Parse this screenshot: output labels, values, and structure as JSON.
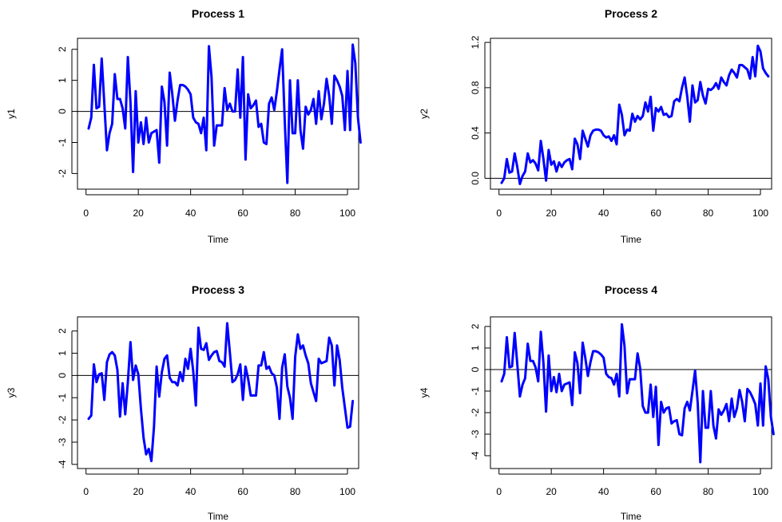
{
  "line_color": "#0000ff",
  "chart_data": [
    {
      "type": "line",
      "title": "Process 1",
      "xlabel": "Time",
      "ylabel": "y1",
      "xlim": [
        1,
        100
      ],
      "ylim": [
        -2.3,
        2.15
      ],
      "xticks": [
        0,
        20,
        40,
        60,
        80,
        100
      ],
      "yticks": [
        -2,
        -1,
        0,
        1,
        2
      ],
      "hline": 0,
      "series": [
        {
          "values": [
            -0.55,
            -0.2,
            1.5,
            0.1,
            0.15,
            1.7,
            0.25,
            -1.25,
            -0.7,
            -0.4,
            1.2,
            0.4,
            0.4,
            0.1,
            -0.55,
            1.75,
            0.3,
            -1.95,
            0.65,
            -1.0,
            -0.35,
            -1.05,
            -0.2,
            -1.0,
            -0.7,
            -0.65,
            -0.6,
            -1.65,
            0.8,
            0.3,
            -1.1,
            1.25,
            0.55,
            -0.3,
            0.35,
            0.85,
            0.85,
            0.8,
            0.7,
            0.55,
            -0.2,
            -0.35,
            -0.4,
            -0.7,
            -0.2,
            -1.25,
            2.1,
            1.1,
            -1.1,
            -0.45,
            -0.45,
            -0.45,
            0.75,
            0.05,
            0.25,
            0.0,
            0.0,
            1.35,
            -0.2,
            1.75,
            -1.55,
            0.55,
            0.1,
            0.2,
            0.35,
            -0.5,
            -0.4,
            -1.0,
            -1.05,
            0.25,
            0.45,
            0.05,
            0.65,
            1.35,
            2.0,
            -0.3,
            -2.3,
            1.0,
            -0.7,
            -0.7,
            1.0,
            -0.6,
            -1.2,
            0.15,
            -0.1,
            0.05,
            0.4,
            -0.4,
            0.65,
            -0.25,
            0.25,
            1.05,
            0.5,
            -0.4,
            1.15,
            1.0,
            0.8,
            0.5,
            -0.6,
            1.3,
            -0.6,
            2.15,
            1.55,
            -0.2,
            -1.0
          ]
        }
      ]
    },
    {
      "type": "line",
      "title": "Process 2",
      "xlabel": "Time",
      "ylabel": "y2",
      "xlim": [
        1,
        100
      ],
      "ylim": [
        -0.04,
        1.18
      ],
      "xticks": [
        0,
        20,
        40,
        60,
        80,
        100
      ],
      "yticks": [
        0.0,
        0.4,
        0.8,
        1.2
      ],
      "ytick_labels": [
        "0.0",
        "0.4",
        "0.8",
        "1.2"
      ],
      "hline": 0,
      "series": [
        {
          "values": [
            -0.04,
            0.0,
            0.17,
            0.05,
            0.06,
            0.22,
            0.1,
            -0.05,
            0.02,
            0.06,
            0.22,
            0.14,
            0.16,
            0.13,
            0.07,
            0.33,
            0.17,
            -0.02,
            0.25,
            0.12,
            0.15,
            0.06,
            0.14,
            0.1,
            0.14,
            0.16,
            0.17,
            0.08,
            0.35,
            0.3,
            0.17,
            0.42,
            0.35,
            0.28,
            0.38,
            0.42,
            0.43,
            0.43,
            0.42,
            0.38,
            0.36,
            0.37,
            0.33,
            0.38,
            0.3,
            0.65,
            0.56,
            0.38,
            0.43,
            0.42,
            0.57,
            0.5,
            0.55,
            0.52,
            0.55,
            0.67,
            0.59,
            0.72,
            0.42,
            0.62,
            0.59,
            0.63,
            0.56,
            0.57,
            0.54,
            0.55,
            0.68,
            0.7,
            0.68,
            0.8,
            0.89,
            0.72,
            0.5,
            0.82,
            0.67,
            0.69,
            0.85,
            0.73,
            0.66,
            0.79,
            0.78,
            0.8,
            0.84,
            0.79,
            0.89,
            0.85,
            0.82,
            0.91,
            0.96,
            0.93,
            0.89,
            1.0,
            1.0,
            0.98,
            0.96,
            0.88,
            1.07,
            0.9,
            1.17,
            1.12,
            0.97,
            0.93,
            0.9
          ]
        }
      ]
    },
    {
      "type": "line",
      "title": "Process 3",
      "xlabel": "Time",
      "ylabel": "y3",
      "xlim": [
        1,
        100
      ],
      "ylim": [
        -3.9,
        2.35
      ],
      "xticks": [
        0,
        20,
        40,
        60,
        80,
        100
      ],
      "yticks": [
        -4,
        -3,
        -2,
        -1,
        0,
        1,
        2
      ],
      "hline": 0,
      "series": [
        {
          "values": [
            -1.95,
            -1.8,
            0.5,
            -0.3,
            0.05,
            0.1,
            -1.1,
            0.6,
            0.95,
            1.05,
            0.9,
            0.25,
            -1.85,
            -0.35,
            -1.75,
            -0.3,
            1.5,
            -0.2,
            0.45,
            0.05,
            -1.5,
            -2.8,
            -3.55,
            -3.3,
            -3.85,
            -2.3,
            0.4,
            -0.95,
            0.15,
            0.75,
            0.9,
            -0.1,
            -0.3,
            -0.3,
            -0.45,
            0.15,
            -0.25,
            0.75,
            0.3,
            1.2,
            0.2,
            -1.35,
            2.15,
            1.2,
            1.15,
            1.45,
            0.7,
            0.9,
            1.05,
            1.1,
            0.65,
            0.6,
            0.4,
            2.35,
            1.05,
            -0.3,
            -0.2,
            0.05,
            0.5,
            -1.1,
            0.4,
            -0.15,
            -0.9,
            -0.9,
            -0.9,
            0.45,
            0.45,
            1.05,
            0.3,
            0.4,
            0.1,
            0.0,
            -0.55,
            -1.95,
            0.35,
            0.95,
            -0.5,
            -1.0,
            -1.95,
            0.85,
            1.85,
            1.2,
            1.35,
            0.9,
            0.55,
            -0.35,
            -0.75,
            -1.15,
            0.75,
            0.55,
            0.6,
            0.65,
            1.7,
            1.35,
            -0.45,
            1.35,
            0.7,
            -0.55,
            -1.45,
            -2.35,
            -2.3,
            -1.15
          ]
        }
      ]
    },
    {
      "type": "line",
      "title": "Process 4",
      "xlabel": "Time",
      "ylabel": "y4",
      "xlim": [
        1,
        100
      ],
      "ylim": [
        -4.3,
        2.15
      ],
      "xticks": [
        0,
        20,
        40,
        60,
        80,
        100
      ],
      "yticks": [
        -4,
        -3,
        -2,
        -1,
        0,
        1,
        2
      ],
      "hline": 0,
      "series": [
        {
          "values": [
            -0.55,
            -0.2,
            1.5,
            0.1,
            0.15,
            1.7,
            0.25,
            -1.25,
            -0.7,
            -0.4,
            1.2,
            0.4,
            0.4,
            0.1,
            -0.55,
            1.75,
            0.3,
            -1.95,
            0.65,
            -1.0,
            -0.35,
            -1.05,
            -0.2,
            -1.0,
            -0.7,
            -0.65,
            -0.6,
            -1.65,
            0.8,
            0.3,
            -1.1,
            1.25,
            0.55,
            -0.3,
            0.35,
            0.85,
            0.85,
            0.8,
            0.7,
            0.55,
            -0.2,
            -0.35,
            -0.4,
            -0.7,
            -0.2,
            -1.25,
            2.1,
            1.1,
            -1.1,
            -0.45,
            -0.45,
            -0.45,
            0.75,
            0.05,
            -1.7,
            -2.0,
            -2.0,
            -0.7,
            -2.2,
            -0.8,
            -3.5,
            -1.5,
            -2.0,
            -1.8,
            -1.75,
            -2.5,
            -2.4,
            -2.35,
            -3.0,
            -3.05,
            -1.8,
            -1.5,
            -1.9,
            -1.0,
            -0.05,
            -1.55,
            -4.3,
            -1.0,
            -2.7,
            -2.7,
            -1.0,
            -2.6,
            -3.2,
            -1.85,
            -2.1,
            -1.9,
            -1.6,
            -2.4,
            -1.35,
            -2.2,
            -1.8,
            -0.95,
            -1.5,
            -2.4,
            -0.9,
            -1.05,
            -1.3,
            -1.6,
            -2.6,
            -0.65,
            -2.6,
            0.15,
            -0.45,
            -2.2,
            -3.0
          ]
        }
      ]
    }
  ]
}
